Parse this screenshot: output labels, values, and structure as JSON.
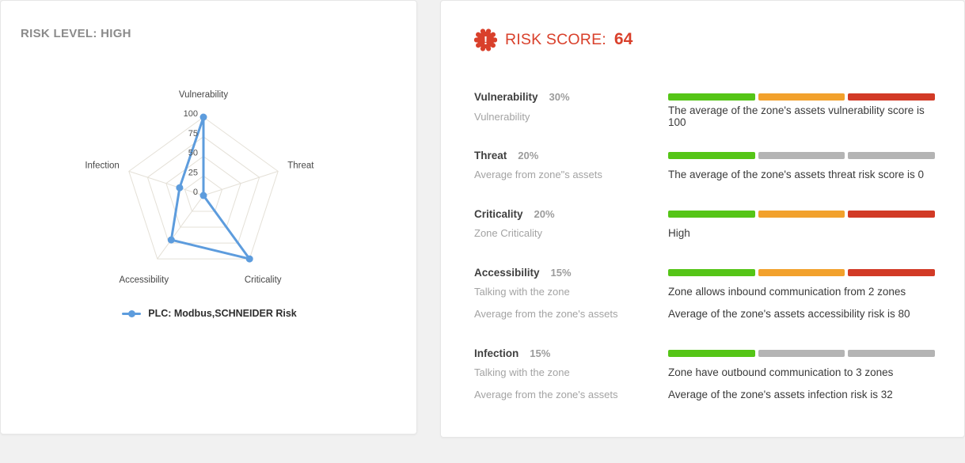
{
  "chart_data": {
    "type": "radar",
    "title": "RISK LEVEL: HIGH",
    "categories": [
      "Vulnerability",
      "Threat",
      "Criticality",
      "Accessibility",
      "Infection"
    ],
    "series": [
      {
        "name": "PLC: Modbus,SCHNEIDER Risk",
        "values": [
          100,
          0,
          100,
          70,
          32
        ]
      }
    ],
    "ticks": [
      0,
      25,
      50,
      75,
      100
    ],
    "rmax": 100,
    "grid": true,
    "legend_position": "bottom",
    "line_color": "#5d9cdd",
    "grid_color": "#e4e0d7"
  },
  "left_panel": {
    "title": "RISK LEVEL: HIGH",
    "legend_label": "PLC: Modbus,SCHNEIDER Risk"
  },
  "right_panel": {
    "badge_icon": "seal-exclamation",
    "badge_glyph": "!",
    "title": "RISK SCORE:",
    "score": "64",
    "palette": {
      "green": "#55c517",
      "orange": "#f2a12c",
      "red": "#d23a26",
      "gray": "#b4b4b4",
      "accent": "#d9402b"
    },
    "factors": [
      {
        "name": "Vulnerability",
        "weight": "30%",
        "segments": [
          "green",
          "orange",
          "red"
        ],
        "details": [
          {
            "label": "Vulnerability",
            "text": "The average of the zone's assets vulnerability score is 100"
          }
        ]
      },
      {
        "name": "Threat",
        "weight": "20%",
        "segments": [
          "green",
          "gray",
          "gray"
        ],
        "details": [
          {
            "label": "Average from zone\"s assets",
            "text": "The average of the zone's assets threat risk score is 0"
          }
        ]
      },
      {
        "name": "Criticality",
        "weight": "20%",
        "segments": [
          "green",
          "orange",
          "red"
        ],
        "details": [
          {
            "label": "Zone Criticality",
            "text": "High"
          }
        ]
      },
      {
        "name": "Accessibility",
        "weight": "15%",
        "segments": [
          "green",
          "orange",
          "red"
        ],
        "details": [
          {
            "label": "Talking with the zone",
            "text": "Zone allows inbound communication from 2 zones"
          },
          {
            "label": "Average from the zone's assets",
            "text": "Average of the zone's assets accessibility risk is 80"
          }
        ]
      },
      {
        "name": "Infection",
        "weight": "15%",
        "segments": [
          "green",
          "gray",
          "gray"
        ],
        "details": [
          {
            "label": "Talking with the zone",
            "text": "Zone have outbound communication to 3 zones"
          },
          {
            "label": "Average from the zone's assets",
            "text": "Average of the zone's assets infection risk is 32"
          }
        ]
      }
    ]
  }
}
